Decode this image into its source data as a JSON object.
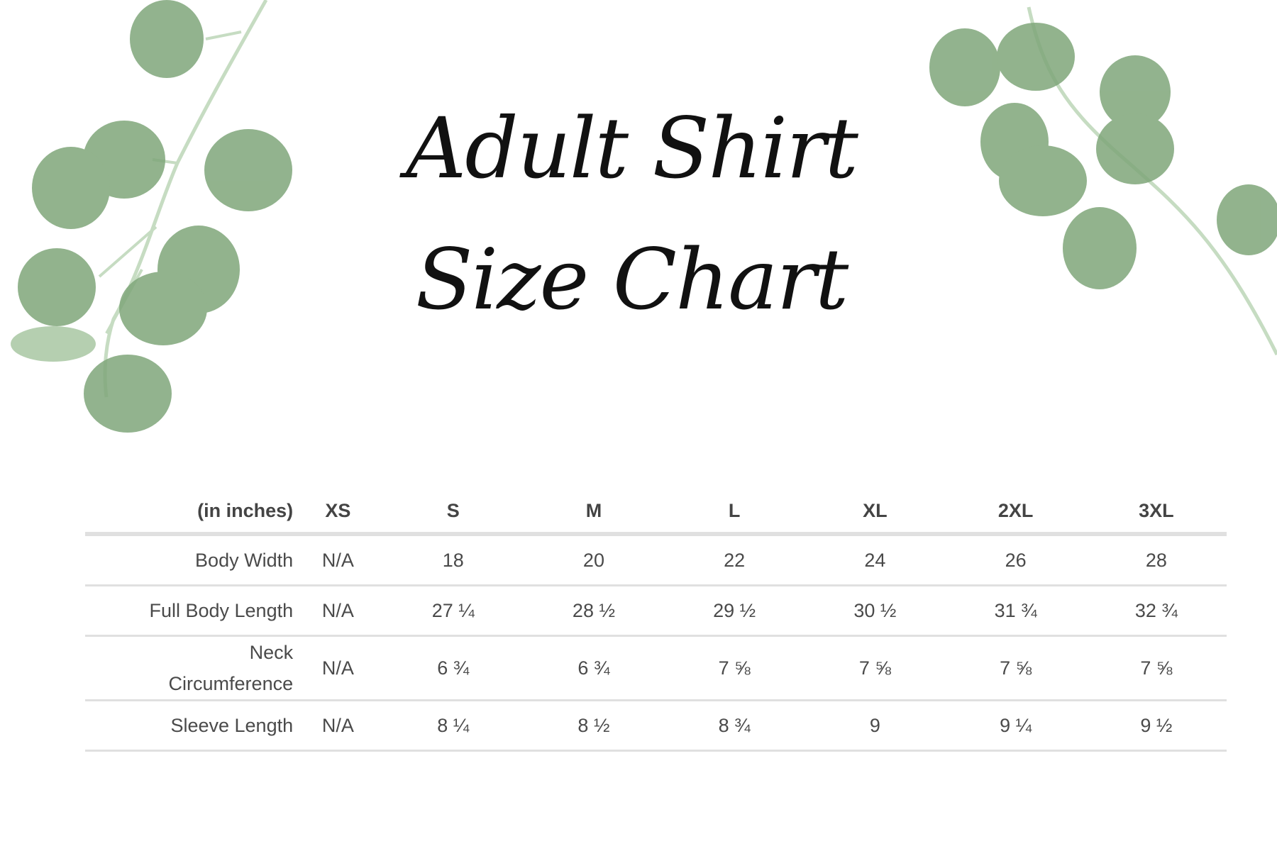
{
  "title": {
    "line1": "Adult Shirt",
    "line2": "Size Chart"
  },
  "colors": {
    "leaf": "#7fa67a",
    "leaf_light": "#b5cfb0",
    "stem": "#c6dcc2",
    "rule": "#e0e0e0"
  },
  "table": {
    "unit_label": "(in inches)",
    "sizes": [
      "XS",
      "S",
      "M",
      "L",
      "XL",
      "2XL",
      "3XL"
    ],
    "rows": [
      {
        "label": "Body Width",
        "values": [
          "N/A",
          "18",
          "20",
          "22",
          "24",
          "26",
          "28"
        ]
      },
      {
        "label": "Full Body Length",
        "values": [
          "N/A",
          "27 ¼",
          "28 ½",
          "29 ½",
          "30 ½",
          "31 ¾",
          "32 ¾"
        ]
      },
      {
        "label_line1": "Neck",
        "label_line2": "Circumference",
        "values": [
          "N/A",
          "6 ¾",
          "6 ¾",
          "7 ⅝",
          "7 ⅝",
          "7 ⅝",
          "7 ⅝"
        ]
      },
      {
        "label": "Sleeve Length",
        "values": [
          "N/A",
          "8 ¼",
          "8 ½",
          "8 ¾",
          "9",
          "9 ¼",
          "9 ½"
        ]
      }
    ]
  }
}
